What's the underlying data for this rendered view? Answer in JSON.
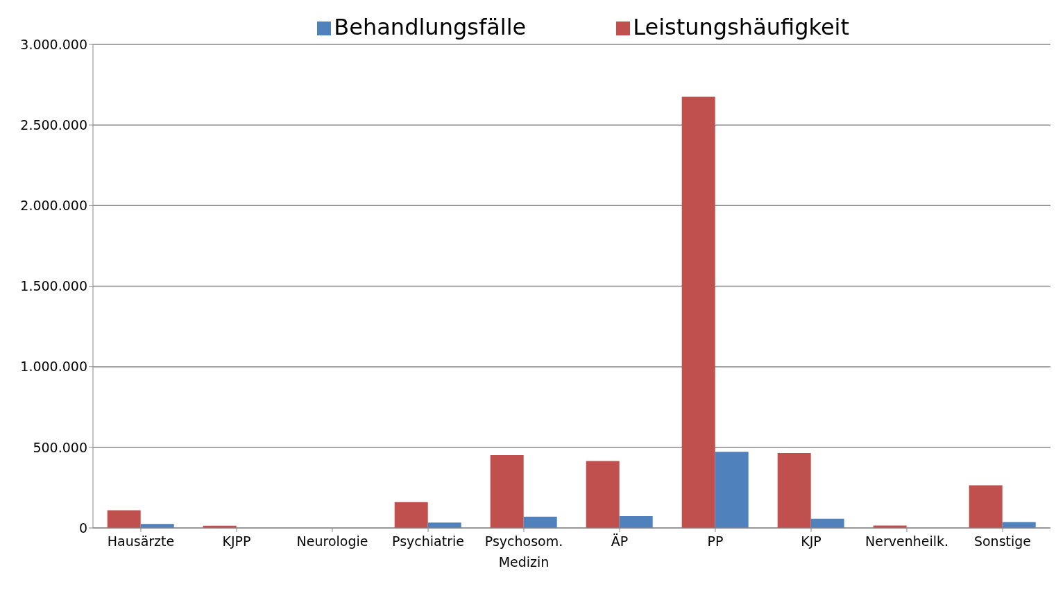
{
  "chart_data": {
    "type": "bar",
    "categories": [
      "Hausärzte",
      "KJPP",
      "Neurologie",
      "Psychiatrie",
      "Psychosom. Medizin",
      "ÄP",
      "PP",
      "KJP",
      "Nervenheilk.",
      "Sonstige"
    ],
    "series": [
      {
        "name": "Leistungshäufigkeit",
        "color": "#c0504d",
        "values": [
          110000,
          14000,
          null,
          160000,
          452000,
          415000,
          2675000,
          465000,
          15000,
          265000
        ]
      },
      {
        "name": "Behandlungsfälle",
        "color": "#4f81bd",
        "values": [
          25000,
          null,
          null,
          33000,
          70000,
          73000,
          472000,
          57000,
          null,
          37000
        ]
      }
    ],
    "ylim": [
      0,
      3000000
    ],
    "yticks": [
      {
        "value": 0,
        "label": "0"
      },
      {
        "value": 500000,
        "label": "500.000"
      },
      {
        "value": 1000000,
        "label": "1.000.000"
      },
      {
        "value": 1500000,
        "label": "1.500.000"
      },
      {
        "value": 2000000,
        "label": "2.000.000"
      },
      {
        "value": 2500000,
        "label": "2.500.000"
      },
      {
        "value": 3000000,
        "label": "3.000.000"
      }
    ],
    "grid": "y",
    "legend": "top right"
  }
}
